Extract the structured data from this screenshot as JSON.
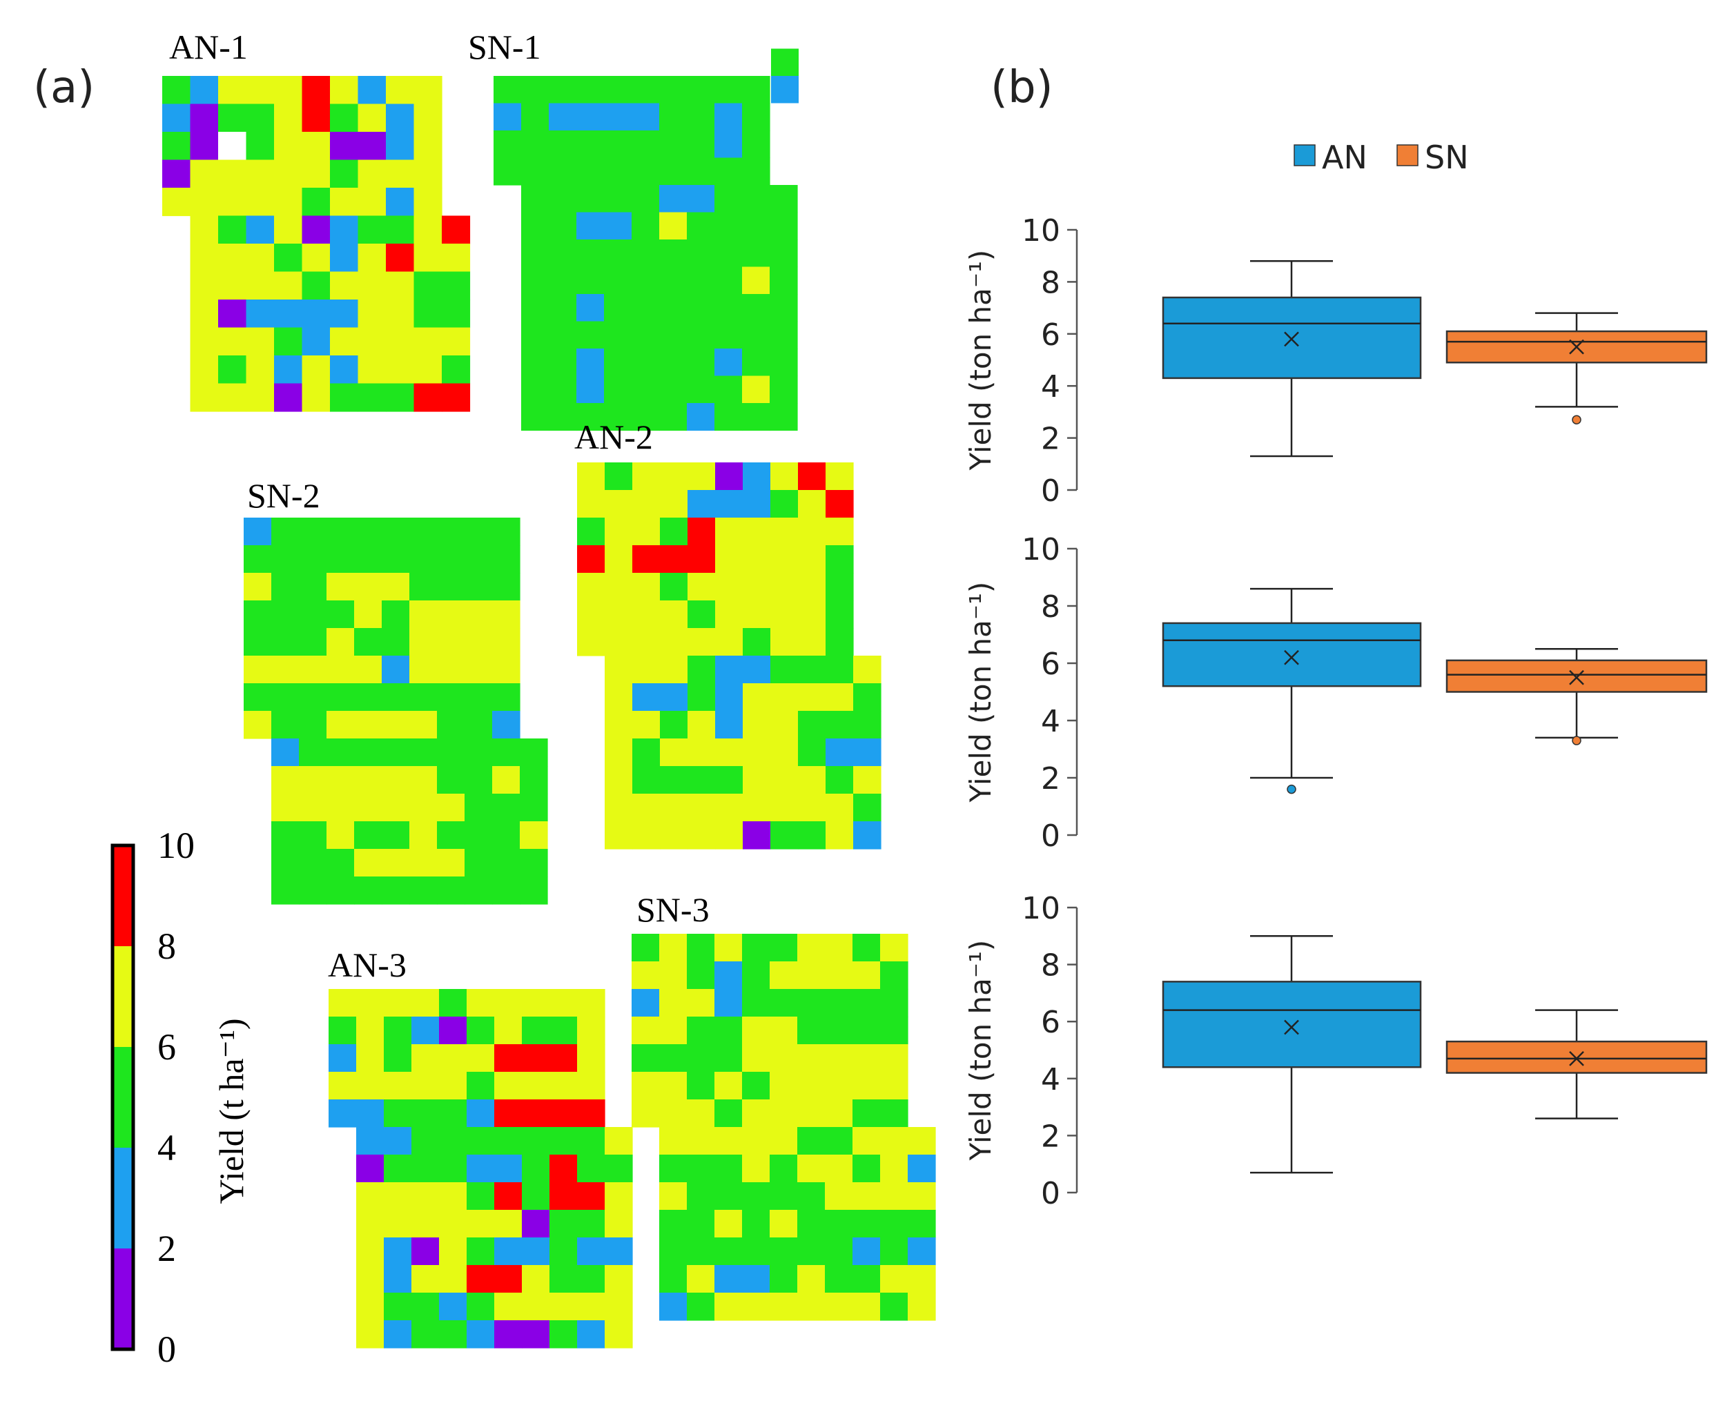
{
  "panel_a": {
    "label": "(a)",
    "fields": [
      {
        "name": "AN-1",
        "rows": [
          "GBYYYRYBYY",
          "BPGGYRGYBY",
          "GPWGYYPPBY",
          "PYYYYYGYYY",
          "YYYYYGYYBY",
          "YGBYPBGGYR",
          "YYYGYBYRYY",
          "YYYYGYYYGG",
          "YPBBBBYYGG",
          "YYYGBYYYYY",
          "YGYBYBYYYG",
          "YYYPYGGGRR"
        ]
      },
      {
        "name": "SN-1",
        "rows": [
          "GGGGGGGGGG",
          "BGBBBBGGBG",
          "GGGGGGGGBG",
          "GGGGGGGGGG",
          "GGGGGBBGGG",
          "GGBBGYGGGG",
          "GGGGGGGGGG",
          "GGGGGGGGYG",
          "GGBGGGGGGG",
          "GGGGGGGGGG",
          "GGBGGGGBGG",
          "GGBGGGGGYG",
          "GGGGGGBGGG"
        ]
      },
      {
        "name": "SN-2",
        "rows": [
          "BGGGGGGGGG",
          "GGGGGGGGGG",
          "YGGYYYGGGG",
          "GGGGYGYYYY",
          "GGGYGGYYYY",
          "YYYYYBYYYY",
          "GGGGGGGGGG",
          "YGGYYYYGGB",
          "BGGGGGGGGG",
          "YYYYYYGGYG",
          "YYYYYYYGGG",
          "GGYGGYGGGY",
          "GGGYYYYGGG",
          "GGGGGGGGGG"
        ]
      },
      {
        "name": "AN-2",
        "rows": [
          "YGYYYPBYRY",
          "YYYYBBBGYR",
          "GYYGRYYYYY",
          "RYRRRYYYYG",
          "YYYGYYYYYG",
          "YYYYGYYYYG",
          "YYYYYYGYYG",
          "YYYGBBGGGY",
          "YBBGBYYYYG",
          "YYGYBYYGGG",
          "YGYYYYYGBB",
          "YGGGGYYYGY",
          "YYYYYYYYYG",
          "YYYYYPGGYB"
        ]
      },
      {
        "name": "AN-3",
        "rows": [
          "YYYYGYYYYY",
          "GYGBPGYGGY",
          "BYGYYYRRRY",
          "YYYYYGYYYY",
          "BBGGGBRRRR",
          "BBGGGGGGGY",
          "PGGGBBGRGG",
          "YYYYGRGRRY",
          "YYYYYYPGGY",
          "YBPYGBBGBB",
          "YBYYRRYGGY",
          "YGGBGYYYYY",
          "YBGGBPPGBY"
        ]
      },
      {
        "name": "SN-3",
        "rows": [
          "GYGYGGYYGY",
          "YYGBGYYYYG",
          "BYYBGGGGGG",
          "YYGGYYGGGG",
          "GGGGYYYYYY",
          "YYGYGYYYYY",
          "YYYGYYYYGG",
          "YYYYYGGYYY",
          "GGGYGYYGYB",
          "YGGGGGYYYY",
          "GGYGYGGGGG",
          "GGGGGGGBGB",
          "GYBBGYGGYY",
          "BGYYYYYYGY"
        ]
      }
    ],
    "colorbar": {
      "title": "Yield (t ha⁻¹)",
      "ticks": [
        "0",
        "2",
        "4",
        "6",
        "8",
        "10"
      ],
      "colors": {
        "purple": "#8A00E6",
        "blue": "#1EA0F0",
        "green": "#1EE61E",
        "yellow": "#E6FA14",
        "red": "#FF0000",
        "white": "#FFFFFF"
      }
    }
  },
  "panel_b": {
    "label": "(b)",
    "legend": [
      {
        "name": "AN",
        "color": "#1B9BD7"
      },
      {
        "name": "SN",
        "color": "#F07F35"
      }
    ],
    "ylabel": "Yield (ton ha⁻¹)"
  },
  "chart_data": {
    "type": "box",
    "title": "",
    "ylabel": "Yield (ton ha⁻¹)",
    "ylim": [
      0,
      10
    ],
    "yticks": [
      "0",
      "2",
      "4",
      "6",
      "8",
      "10"
    ],
    "series_names": [
      "AN",
      "SN"
    ],
    "plots": [
      {
        "boxes": [
          {
            "name": "AN",
            "whisker_low": 1.3,
            "q1": 4.3,
            "median": 6.4,
            "q3": 7.4,
            "whisker_high": 8.8,
            "mean": 5.8,
            "outliers": []
          },
          {
            "name": "SN",
            "whisker_low": 3.2,
            "q1": 4.9,
            "median": 5.7,
            "q3": 6.1,
            "whisker_high": 6.8,
            "mean": 5.5,
            "outliers": [
              2.7
            ]
          }
        ]
      },
      {
        "boxes": [
          {
            "name": "AN",
            "whisker_low": 2.0,
            "q1": 5.2,
            "median": 6.8,
            "q3": 7.4,
            "whisker_high": 8.6,
            "mean": 6.2,
            "outliers": [
              1.6
            ]
          },
          {
            "name": "SN",
            "whisker_low": 3.4,
            "q1": 5.0,
            "median": 5.6,
            "q3": 6.1,
            "whisker_high": 6.5,
            "mean": 5.5,
            "outliers": [
              3.3
            ]
          }
        ]
      },
      {
        "boxes": [
          {
            "name": "AN",
            "whisker_low": 0.7,
            "q1": 4.4,
            "median": 6.4,
            "q3": 7.4,
            "whisker_high": 9.0,
            "mean": 5.8,
            "outliers": []
          },
          {
            "name": "SN",
            "whisker_low": 2.6,
            "q1": 4.2,
            "median": 4.7,
            "q3": 5.3,
            "whisker_high": 6.4,
            "mean": 4.7,
            "outliers": []
          }
        ]
      }
    ]
  }
}
